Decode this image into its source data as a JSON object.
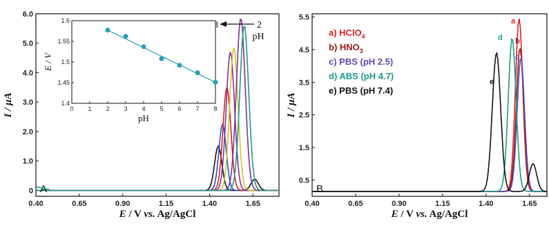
{
  "chart_data": [
    {
      "panel": "A",
      "type": "line",
      "xlabel": "E / V vs. Ag/AgCl",
      "ylabel": "I / µA",
      "xlim": [
        0.4,
        1.8
      ],
      "ylim": [
        -0.2,
        6.0
      ],
      "x_ticks": [
        "0.40",
        "0.65",
        "0.90",
        "1.15",
        "1.40",
        "1.65"
      ],
      "y_ticks": [
        "0",
        "1.0",
        "2.0",
        "3.0",
        "4.0",
        "5.0",
        "6.0"
      ],
      "panel_label": "A",
      "annotation_left": "8",
      "annotation_right": "2",
      "annotation_unit": "pH",
      "colors": [
        "#d42020",
        "#2055c8",
        "#1a9a88",
        "#8a2a9a",
        "#c8c820",
        "#111111",
        "#9a2a30"
      ],
      "series": [
        {
          "peak_x": 1.45,
          "peak_y": 1.5,
          "width": 0.03,
          "color": "#111111",
          "tail": 0.38
        },
        {
          "peak_x": 1.475,
          "peak_y": 2.25,
          "width": 0.03,
          "color": "#2055c8"
        },
        {
          "peak_x": 1.5,
          "peak_y": 3.5,
          "width": 0.032,
          "color": "#d42020"
        },
        {
          "peak_x": 1.52,
          "peak_y": 4.7,
          "width": 0.034,
          "color": "#8a2a9a"
        },
        {
          "peak_x": 1.54,
          "peak_y": 4.85,
          "width": 0.034,
          "color": "#c8c820"
        },
        {
          "peak_x": 1.58,
          "peak_y": 5.85,
          "width": 0.036,
          "color": "#8a2a9a"
        },
        {
          "peak_x": 1.6,
          "peak_y": 5.6,
          "width": 0.036,
          "color": "#1a9a88"
        }
      ],
      "inset": {
        "type": "scatter",
        "xlabel": "pH",
        "ylabel": "E / V",
        "xlim": [
          0,
          8
        ],
        "ylim": [
          1.4,
          1.6
        ],
        "x_ticks": [
          "0",
          "1",
          "2",
          "3",
          "4",
          "5",
          "6",
          "7",
          "8"
        ],
        "y_ticks": [
          "1.4",
          "1.45",
          "1.5",
          "1.55",
          "1.6"
        ],
        "x": [
          2,
          3,
          4,
          5,
          6,
          7,
          8
        ],
        "y": [
          1.577,
          1.562,
          1.537,
          1.508,
          1.492,
          1.474,
          1.451
        ],
        "color": "#2a9fb8"
      }
    },
    {
      "panel": "B",
      "type": "line",
      "xlabel": "E / V vs. Ag/AgCl",
      "ylabel": "I / µA",
      "xlim": [
        0.4,
        1.75
      ],
      "ylim": [
        0.0,
        5.6
      ],
      "x_ticks": [
        "0.40",
        "0.65",
        "0.90",
        "1.15",
        "1.40",
        "1.65"
      ],
      "y_ticks": [
        "0.5",
        "1.5",
        "2.5",
        "3.5",
        "4.5",
        "5.5"
      ],
      "panel_label": "B",
      "legend": [
        {
          "label": "a) HClO",
          "sub": "4",
          "color": "#e02020"
        },
        {
          "label": "b) HNO",
          "sub": "3",
          "color": "#9a1a20"
        },
        {
          "label": "c) PBS (pH 2.5)",
          "sub": "",
          "color": "#5a4ab8"
        },
        {
          "label": "d) ABS (pH 4.7)",
          "sub": "",
          "color": "#1a9a88"
        },
        {
          "label": "e) PBS (pH 7.4)",
          "sub": "",
          "color": "#111111"
        }
      ],
      "series": [
        {
          "name": "a",
          "peak_x": 1.59,
          "peak_y": 5.3,
          "width": 0.03,
          "color": "#e02020"
        },
        {
          "name": "b",
          "peak_x": 1.595,
          "peak_y": 4.4,
          "width": 0.03,
          "color": "#9a1a20"
        },
        {
          "name": "c",
          "peak_x": 1.6,
          "peak_y": 4.1,
          "width": 0.03,
          "color": "#5a4ab8"
        },
        {
          "name": "d",
          "peak_x": 1.55,
          "peak_y": 4.7,
          "width": 0.032,
          "color": "#1a9a88"
        },
        {
          "name": "e",
          "peak_x": 1.46,
          "peak_y": 4.25,
          "width": 0.034,
          "color": "#111111",
          "tail": 0.85
        }
      ],
      "peak_labels": [
        "a",
        "b",
        "c",
        "d",
        "e"
      ]
    }
  ]
}
